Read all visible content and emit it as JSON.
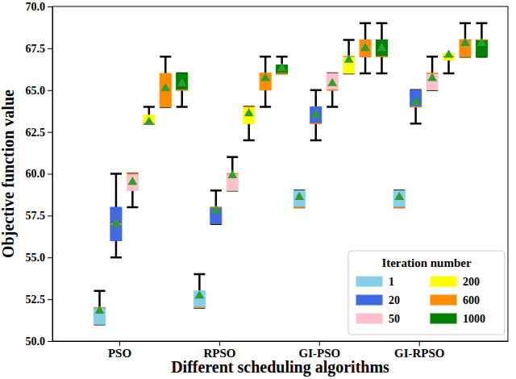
{
  "chart_data": {
    "type": "box",
    "x_label": "Different scheduling algorithms",
    "y_label": "Objective function value",
    "legend_title": "Iteration number",
    "legend": "lower right",
    "marker": "triangle",
    "grid": false,
    "categories": [
      "PSO",
      "RPSO",
      "GI-PSO",
      "GI-RPSO"
    ],
    "ylim": [
      50,
      70
    ],
    "yticks": [
      {
        "value": 50,
        "label": "50.0"
      },
      52.5,
      {
        "value": 55,
        "label": "55.0"
      },
      57.5,
      {
        "value": 60,
        "label": "60.0"
      },
      62.5,
      {
        "value": 65,
        "label": "65.0"
      },
      67.5,
      {
        "value": 70,
        "label": "70.0"
      }
    ],
    "series": [
      {
        "name": "1",
        "color": "#87ceeb",
        "whislo": [
          51,
          52,
          58,
          58
        ],
        "q1": [
          51,
          52,
          58,
          58
        ],
        "median": [
          52,
          52,
          58,
          58
        ],
        "q3": [
          52,
          53,
          59,
          59
        ],
        "whishi": [
          53,
          54,
          59,
          59
        ],
        "mean": [
          51.8,
          52.7,
          58.6,
          58.6
        ]
      },
      {
        "name": "20",
        "color": "#4169e1",
        "whislo": [
          55,
          57,
          62,
          63
        ],
        "q1": [
          56,
          57,
          63,
          64
        ],
        "median": [
          57,
          58,
          63,
          64
        ],
        "q3": [
          58,
          58,
          64,
          65
        ],
        "whishi": [
          60,
          59,
          65,
          65
        ],
        "mean": [
          57,
          57.8,
          63.5,
          64.3
        ]
      },
      {
        "name": "50",
        "color": "#ffc0cb",
        "whislo": [
          58,
          59,
          64,
          65
        ],
        "q1": [
          59,
          59,
          65,
          65
        ],
        "median": [
          60,
          60,
          65,
          66
        ],
        "q3": [
          60,
          60,
          66,
          66
        ],
        "whishi": [
          60,
          61,
          66,
          67
        ],
        "mean": [
          59.5,
          59.9,
          65.4,
          65.7
        ]
      },
      {
        "name": "200",
        "color": "#ffff00",
        "whislo": [
          63,
          62,
          66,
          66
        ],
        "q1": [
          63,
          63,
          66,
          66.8
        ],
        "median": [
          63,
          64,
          67,
          67
        ],
        "q3": [
          63.5,
          64,
          67,
          67.2
        ],
        "whishi": [
          64,
          64,
          68,
          67
        ],
        "mean": [
          63.1,
          63.6,
          66.8,
          67.1
        ]
      },
      {
        "name": "600",
        "color": "#ff8c00",
        "whislo": [
          64,
          64,
          66,
          67
        ],
        "q1": [
          64,
          65,
          67,
          67
        ],
        "median": [
          65,
          66,
          67,
          68
        ],
        "q3": [
          66,
          66,
          68,
          68
        ],
        "whishi": [
          67,
          67,
          69,
          69
        ],
        "mean": [
          65.1,
          65.7,
          67.5,
          67.8
        ]
      },
      {
        "name": "1000",
        "color": "#008000",
        "whislo": [
          64,
          66,
          66,
          67
        ],
        "q1": [
          65,
          66,
          67,
          67
        ],
        "median": [
          65,
          66,
          67,
          68
        ],
        "q3": [
          66,
          66.5,
          68,
          68
        ],
        "whishi": [
          66,
          67,
          69,
          69
        ],
        "mean": [
          65.4,
          66.3,
          67.5,
          67.8
        ]
      }
    ]
  }
}
